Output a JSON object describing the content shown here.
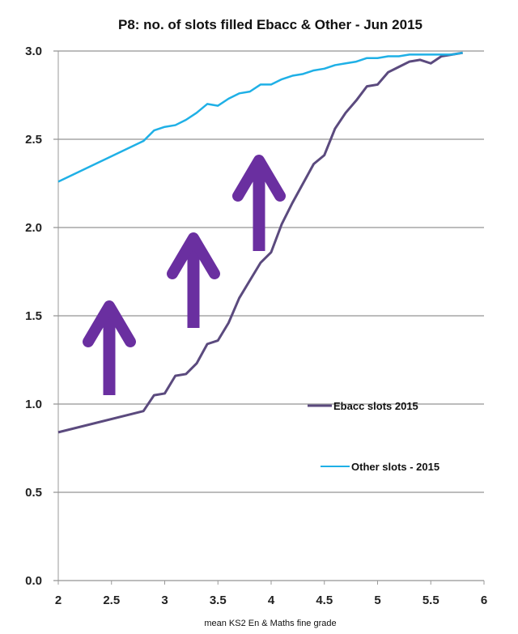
{
  "chart_data": {
    "type": "line",
    "title": "P8: no. of slots filled Ebacc & Other - Jun 2015",
    "xlabel": "mean KS2 En & Maths fine grade",
    "ylabel": "",
    "xlim": [
      2,
      6
    ],
    "ylim": [
      0,
      3
    ],
    "x_ticks": [
      "2",
      "2.5",
      "3",
      "3.5",
      "4",
      "4.5",
      "5",
      "5.5",
      "6"
    ],
    "y_ticks": [
      "0.0",
      "0.5",
      "1.0",
      "1.5",
      "2.0",
      "2.5",
      "3.0"
    ],
    "grid": "horizontal",
    "legend_position": "right",
    "annotations": "three purple upward arrows",
    "series": [
      {
        "name": "Ebacc slots 2015",
        "color": "#5b4a7e",
        "x": [
          2.0,
          2.8,
          2.9,
          3.0,
          3.1,
          3.2,
          3.3,
          3.4,
          3.5,
          3.6,
          3.7,
          3.8,
          3.9,
          4.0,
          4.1,
          4.2,
          4.3,
          4.4,
          4.5,
          4.6,
          4.7,
          4.8,
          4.9,
          5.0,
          5.1,
          5.2,
          5.3,
          5.4,
          5.5,
          5.6,
          5.7,
          5.8
        ],
        "y": [
          0.84,
          0.96,
          1.05,
          1.06,
          1.16,
          1.17,
          1.23,
          1.34,
          1.36,
          1.46,
          1.6,
          1.7,
          1.8,
          1.86,
          2.02,
          2.14,
          2.25,
          2.36,
          2.41,
          2.56,
          2.65,
          2.72,
          2.8,
          2.81,
          2.88,
          2.91,
          2.94,
          2.95,
          2.93,
          2.97,
          2.98,
          2.99
        ]
      },
      {
        "name": "Other slots - 2015",
        "color": "#1fb0e6",
        "x": [
          2.0,
          2.8,
          2.9,
          3.0,
          3.1,
          3.2,
          3.3,
          3.4,
          3.5,
          3.6,
          3.7,
          3.8,
          3.9,
          4.0,
          4.1,
          4.2,
          4.3,
          4.4,
          4.5,
          4.6,
          4.7,
          4.8,
          4.9,
          5.0,
          5.1,
          5.2,
          5.3,
          5.4,
          5.5,
          5.6,
          5.7,
          5.8
        ],
        "y": [
          2.26,
          2.49,
          2.55,
          2.57,
          2.58,
          2.61,
          2.65,
          2.7,
          2.69,
          2.73,
          2.76,
          2.77,
          2.81,
          2.81,
          2.84,
          2.86,
          2.87,
          2.89,
          2.9,
          2.92,
          2.93,
          2.94,
          2.96,
          2.96,
          2.97,
          2.97,
          2.98,
          2.98,
          2.98,
          2.98,
          2.98,
          2.99
        ]
      }
    ],
    "arrow_color": "#6a2fa0"
  }
}
